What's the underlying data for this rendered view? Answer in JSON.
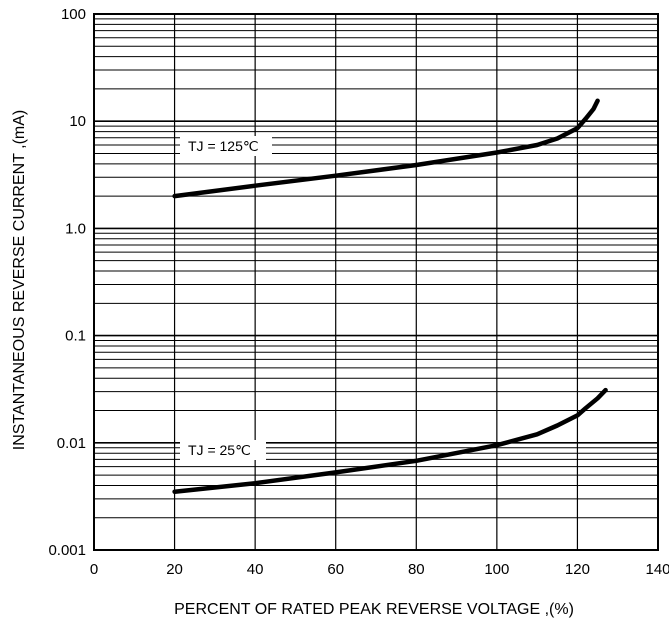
{
  "chart_data": {
    "type": "line",
    "xlabel": "PERCENT OF RATED PEAK REVERSE VOLTAGE ,(%)",
    "ylabel": "INSTANTANEOUS REVERSE CURRENT ,(mA)",
    "x_ticks": [
      "0",
      "20",
      "40",
      "60",
      "80",
      "100",
      "120",
      "140"
    ],
    "y_ticks": [
      "100",
      "10",
      "1.0",
      "0.1",
      "0.01",
      "0.001"
    ],
    "xlim": [
      0,
      140
    ],
    "ylim": [
      0.001,
      100
    ],
    "y_scale": "log",
    "grid": true,
    "series": [
      {
        "name": "TJ = 125℃",
        "x": [
          20,
          40,
          60,
          80,
          100,
          110,
          115,
          120,
          122,
          124,
          125
        ],
        "y": [
          2.0,
          2.5,
          3.1,
          3.9,
          5.1,
          6.0,
          6.9,
          8.6,
          10.5,
          13.0,
          15.5
        ]
      },
      {
        "name": "TJ = 25℃",
        "x": [
          20,
          40,
          60,
          80,
          100,
          110,
          115,
          120,
          122,
          125,
          127
        ],
        "y": [
          0.0035,
          0.0042,
          0.0053,
          0.0068,
          0.0095,
          0.012,
          0.0145,
          0.018,
          0.021,
          0.026,
          0.031
        ]
      }
    ]
  }
}
